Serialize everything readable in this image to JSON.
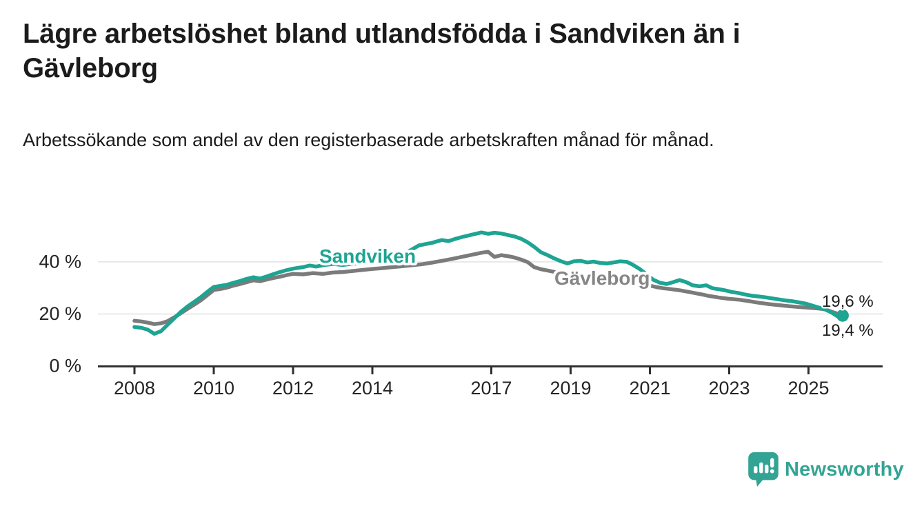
{
  "header": {
    "title": "Lägre arbetslöshet bland utlandsfödda i Sandviken än i Gävleborg",
    "subtitle": "Arbetssökande som andel av den registerbaserade arbetskraften månad för månad."
  },
  "footer": {
    "brand_name": "Newsworthy"
  },
  "colors": {
    "sandviken": "#1ea492",
    "gavleborg": "#7b7b7b",
    "gavleborg_label": "#868686",
    "grid": "#e2e2e2",
    "axis": "#2f2f2f",
    "tick_text": "#242424",
    "value_text": "#1d1d1d",
    "brand": "#33a493"
  },
  "chart_data": {
    "type": "line",
    "title": "Lägre arbetslöshet bland utlandsfödda i Sandviken än i Gävleborg",
    "subtitle": "Arbetssökande som andel av den registerbaserade arbetskraften månad för månad.",
    "y_unit": "%",
    "ylim": [
      0,
      55
    ],
    "xlim": [
      2007.1,
      2026.9
    ],
    "grid": "horizontal",
    "legend": "inline-labels",
    "x_ticks": [
      {
        "value": 2008,
        "label": "2008"
      },
      {
        "value": 2010,
        "label": "2010"
      },
      {
        "value": 2012,
        "label": "2012"
      },
      {
        "value": 2014,
        "label": "2014"
      },
      {
        "value": 2017,
        "label": "2017"
      },
      {
        "value": 2019,
        "label": "2019"
      },
      {
        "value": 2021,
        "label": "2021"
      },
      {
        "value": 2023,
        "label": "2023"
      },
      {
        "value": 2025,
        "label": "2025"
      }
    ],
    "y_ticks": [
      {
        "value": 0,
        "label": "0 %"
      },
      {
        "value": 20,
        "label": "20 %"
      },
      {
        "value": 40,
        "label": "40 %"
      }
    ],
    "series": [
      {
        "name": "Sandviken",
        "color": "#1ea492",
        "end_label": "19,4 %",
        "end_dot": true,
        "points": [
          [
            2008.0,
            15.0
          ],
          [
            2008.17,
            14.7
          ],
          [
            2008.33,
            14.0
          ],
          [
            2008.5,
            12.4
          ],
          [
            2008.67,
            13.4
          ],
          [
            2008.83,
            15.8
          ],
          [
            2009.0,
            18.3
          ],
          [
            2009.17,
            20.8
          ],
          [
            2009.33,
            22.8
          ],
          [
            2009.5,
            24.6
          ],
          [
            2009.67,
            26.4
          ],
          [
            2009.83,
            28.4
          ],
          [
            2010.0,
            30.4
          ],
          [
            2010.17,
            30.8
          ],
          [
            2010.33,
            31.2
          ],
          [
            2010.5,
            32.0
          ],
          [
            2010.67,
            32.7
          ],
          [
            2010.83,
            33.5
          ],
          [
            2011.0,
            34.1
          ],
          [
            2011.17,
            33.6
          ],
          [
            2011.33,
            34.4
          ],
          [
            2011.5,
            35.3
          ],
          [
            2011.67,
            36.1
          ],
          [
            2011.83,
            36.8
          ],
          [
            2012.0,
            37.4
          ],
          [
            2012.25,
            38.0
          ],
          [
            2012.42,
            38.6
          ],
          [
            2012.58,
            38.2
          ],
          [
            2012.75,
            38.7
          ],
          [
            2013.0,
            39.2
          ],
          [
            2013.25,
            38.8
          ],
          [
            2013.5,
            39.3
          ],
          [
            2013.75,
            39.7
          ],
          [
            2014.0,
            40.0
          ],
          [
            2014.25,
            40.4
          ],
          [
            2014.5,
            41.2
          ],
          [
            2014.75,
            42.6
          ],
          [
            2015.0,
            44.8
          ],
          [
            2015.17,
            46.3
          ],
          [
            2015.33,
            46.8
          ],
          [
            2015.5,
            47.3
          ],
          [
            2015.75,
            48.4
          ],
          [
            2015.92,
            48.0
          ],
          [
            2016.08,
            48.8
          ],
          [
            2016.25,
            49.5
          ],
          [
            2016.5,
            50.4
          ],
          [
            2016.75,
            51.3
          ],
          [
            2016.92,
            50.8
          ],
          [
            2017.08,
            51.2
          ],
          [
            2017.25,
            50.9
          ],
          [
            2017.42,
            50.3
          ],
          [
            2017.58,
            49.8
          ],
          [
            2017.75,
            48.9
          ],
          [
            2017.92,
            47.5
          ],
          [
            2018.08,
            45.8
          ],
          [
            2018.25,
            43.7
          ],
          [
            2018.42,
            42.6
          ],
          [
            2018.58,
            41.4
          ],
          [
            2018.75,
            40.3
          ],
          [
            2018.92,
            39.4
          ],
          [
            2019.08,
            40.2
          ],
          [
            2019.25,
            40.4
          ],
          [
            2019.42,
            39.8
          ],
          [
            2019.58,
            40.1
          ],
          [
            2019.75,
            39.6
          ],
          [
            2019.92,
            39.4
          ],
          [
            2020.08,
            39.8
          ],
          [
            2020.25,
            40.2
          ],
          [
            2020.42,
            40.0
          ],
          [
            2020.58,
            38.8
          ],
          [
            2020.75,
            37.2
          ],
          [
            2020.92,
            35.2
          ],
          [
            2021.08,
            33.2
          ],
          [
            2021.25,
            32.0
          ],
          [
            2021.42,
            31.5
          ],
          [
            2021.58,
            32.2
          ],
          [
            2021.75,
            33.0
          ],
          [
            2021.92,
            32.2
          ],
          [
            2022.08,
            31.0
          ],
          [
            2022.25,
            30.6
          ],
          [
            2022.42,
            31.0
          ],
          [
            2022.58,
            29.9
          ],
          [
            2022.75,
            29.5
          ],
          [
            2022.92,
            29.0
          ],
          [
            2023.08,
            28.4
          ],
          [
            2023.25,
            28.0
          ],
          [
            2023.42,
            27.4
          ],
          [
            2023.58,
            27.0
          ],
          [
            2023.75,
            26.7
          ],
          [
            2023.92,
            26.4
          ],
          [
            2024.08,
            26.0
          ],
          [
            2024.25,
            25.6
          ],
          [
            2024.42,
            25.2
          ],
          [
            2024.58,
            24.9
          ],
          [
            2024.75,
            24.5
          ],
          [
            2024.92,
            24.0
          ],
          [
            2025.08,
            23.3
          ],
          [
            2025.25,
            22.5
          ],
          [
            2025.42,
            21.7
          ],
          [
            2025.58,
            20.6
          ],
          [
            2025.72,
            19.2
          ],
          [
            2025.86,
            19.4
          ]
        ]
      },
      {
        "name": "Gävleborg",
        "color": "#7b7b7b",
        "end_label": "19,6 %",
        "end_dot": false,
        "points": [
          [
            2008.0,
            17.4
          ],
          [
            2008.17,
            17.1
          ],
          [
            2008.33,
            16.7
          ],
          [
            2008.5,
            16.1
          ],
          [
            2008.67,
            16.4
          ],
          [
            2008.83,
            17.2
          ],
          [
            2009.0,
            18.7
          ],
          [
            2009.17,
            20.3
          ],
          [
            2009.33,
            21.9
          ],
          [
            2009.5,
            23.5
          ],
          [
            2009.67,
            25.2
          ],
          [
            2009.83,
            27.1
          ],
          [
            2010.0,
            29.2
          ],
          [
            2010.17,
            29.6
          ],
          [
            2010.33,
            30.1
          ],
          [
            2010.5,
            30.9
          ],
          [
            2010.67,
            31.5
          ],
          [
            2010.83,
            32.2
          ],
          [
            2011.0,
            32.9
          ],
          [
            2011.17,
            32.6
          ],
          [
            2011.33,
            33.2
          ],
          [
            2011.5,
            33.8
          ],
          [
            2011.67,
            34.3
          ],
          [
            2011.83,
            34.9
          ],
          [
            2012.0,
            35.4
          ],
          [
            2012.25,
            35.2
          ],
          [
            2012.5,
            35.7
          ],
          [
            2012.75,
            35.4
          ],
          [
            2013.0,
            35.9
          ],
          [
            2013.25,
            36.1
          ],
          [
            2013.5,
            36.5
          ],
          [
            2013.75,
            36.9
          ],
          [
            2014.0,
            37.3
          ],
          [
            2014.25,
            37.6
          ],
          [
            2014.5,
            38.0
          ],
          [
            2014.75,
            38.3
          ],
          [
            2015.0,
            38.7
          ],
          [
            2015.25,
            39.1
          ],
          [
            2015.5,
            39.7
          ],
          [
            2015.75,
            40.4
          ],
          [
            2016.0,
            41.1
          ],
          [
            2016.25,
            41.9
          ],
          [
            2016.5,
            42.7
          ],
          [
            2016.75,
            43.5
          ],
          [
            2016.92,
            43.9
          ],
          [
            2017.08,
            41.9
          ],
          [
            2017.25,
            42.6
          ],
          [
            2017.42,
            42.2
          ],
          [
            2017.58,
            41.7
          ],
          [
            2017.75,
            40.9
          ],
          [
            2017.92,
            39.9
          ],
          [
            2018.08,
            38.0
          ],
          [
            2018.25,
            37.2
          ],
          [
            2018.42,
            36.7
          ],
          [
            2018.58,
            36.2
          ],
          [
            2018.75,
            35.7
          ],
          [
            2019.0,
            35.1
          ],
          [
            2019.25,
            34.7
          ],
          [
            2019.5,
            34.3
          ],
          [
            2019.75,
            33.9
          ],
          [
            2020.0,
            33.5
          ],
          [
            2020.25,
            33.1
          ],
          [
            2020.5,
            32.5
          ],
          [
            2020.75,
            31.7
          ],
          [
            2021.0,
            30.9
          ],
          [
            2021.17,
            30.3
          ],
          [
            2021.33,
            29.9
          ],
          [
            2021.5,
            29.6
          ],
          [
            2021.75,
            29.1
          ],
          [
            2022.0,
            28.4
          ],
          [
            2022.25,
            27.7
          ],
          [
            2022.5,
            26.9
          ],
          [
            2022.75,
            26.3
          ],
          [
            2023.0,
            25.8
          ],
          [
            2023.25,
            25.5
          ],
          [
            2023.5,
            24.9
          ],
          [
            2023.75,
            24.3
          ],
          [
            2024.0,
            23.8
          ],
          [
            2024.25,
            23.4
          ],
          [
            2024.5,
            23.0
          ],
          [
            2024.75,
            22.7
          ],
          [
            2025.0,
            22.4
          ],
          [
            2025.25,
            22.1
          ],
          [
            2025.42,
            21.8
          ],
          [
            2025.58,
            20.9
          ],
          [
            2025.75,
            20.0
          ],
          [
            2025.86,
            19.6
          ]
        ]
      }
    ]
  }
}
